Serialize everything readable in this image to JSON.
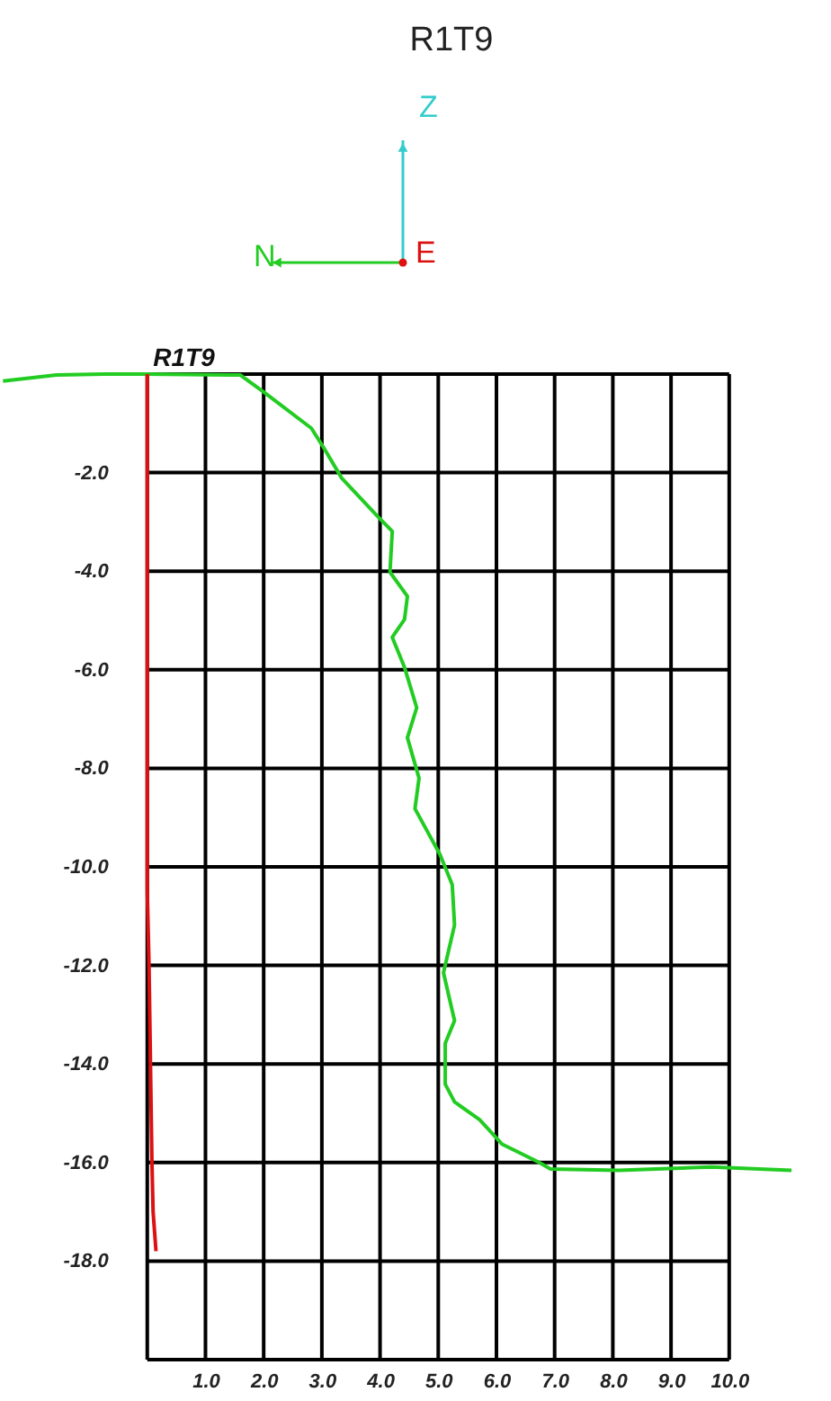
{
  "chart_data": {
    "type": "line",
    "title": "R1T9",
    "annotations": [
      {
        "text": "R1T9",
        "x": 0.1,
        "y": 0.05
      },
      "Z",
      "N",
      "E"
    ],
    "xlim": [
      -2.5,
      11.1
    ],
    "ylim": [
      -20,
      0
    ],
    "xticks": [
      {
        "value": 0,
        "label": null
      },
      {
        "value": 1,
        "label": "1.0"
      },
      {
        "value": 2,
        "label": "2.0"
      },
      {
        "value": 3,
        "label": "3.0"
      },
      {
        "value": 4,
        "label": "4.0"
      },
      {
        "value": 5,
        "label": "5.0"
      },
      {
        "value": 6,
        "label": "6.0"
      },
      {
        "value": 7,
        "label": "7.0"
      },
      {
        "value": 8,
        "label": "8.0"
      },
      {
        "value": 9,
        "label": "9.0"
      },
      {
        "value": 10,
        "label": "10.0"
      }
    ],
    "yticks": [
      {
        "value": 0,
        "label": null
      },
      {
        "value": -2,
        "label": "-2.0"
      },
      {
        "value": -4,
        "label": "-4.0"
      },
      {
        "value": -6,
        "label": "-6.0"
      },
      {
        "value": -8,
        "label": "-8.0"
      },
      {
        "value": -10,
        "label": "-10.0"
      },
      {
        "value": -12,
        "label": "-12.0"
      },
      {
        "value": -14,
        "label": "-14.0"
      },
      {
        "value": -16,
        "label": "-16.0"
      },
      {
        "value": -18,
        "label": "-18.0"
      },
      {
        "value": -20,
        "label": null
      }
    ],
    "grid": true,
    "marker": "none",
    "line_style": "solid",
    "series": [
      {
        "color": "#22cc22",
        "x": [
          -2.48,
          -1.56,
          -0.74,
          -0.03,
          1.6,
          2.02,
          2.82,
          3.04,
          3.34,
          3.96,
          4.21,
          4.17,
          4.47,
          4.42,
          4.21,
          4.42,
          4.63,
          4.47,
          4.67,
          4.6,
          5.03,
          5.24,
          5.28,
          5.09,
          5.28,
          5.12,
          5.12,
          5.28,
          5.71,
          6.1,
          6.72,
          6.93,
          8.1,
          9.69,
          11.07
        ],
        "values": [
          -0.14,
          -0.02,
          0.0,
          0.0,
          -0.02,
          -0.38,
          -1.1,
          -1.51,
          -2.11,
          -2.89,
          -3.19,
          -4.02,
          -4.51,
          -4.98,
          -5.34,
          -5.95,
          -6.77,
          -7.38,
          -8.2,
          -8.82,
          -9.75,
          -10.36,
          -11.18,
          -12.15,
          -13.12,
          -13.58,
          -14.41,
          -14.77,
          -15.13,
          -15.63,
          -15.99,
          -16.13,
          -16.16,
          -16.09,
          -16.16
        ]
      },
      {
        "color": "#dd1111",
        "x": [
          0.0,
          0.0,
          0.0,
          0.03,
          0.08,
          0.1,
          0.15
        ],
        "values": [
          0.0,
          -6.0,
          -10.5,
          -12.0,
          -16.0,
          -17.0,
          -17.8
        ]
      }
    ]
  }
}
